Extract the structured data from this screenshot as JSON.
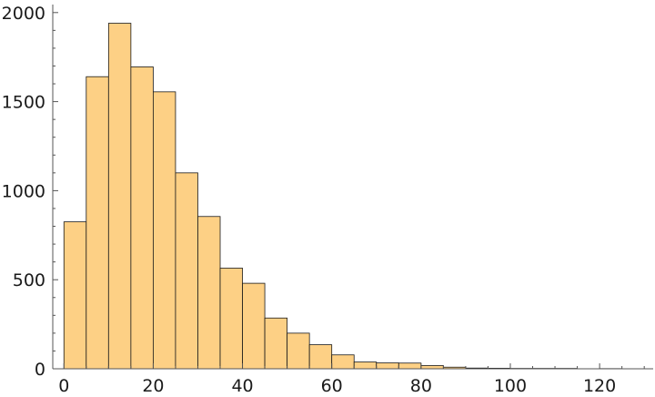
{
  "chart_data": {
    "type": "bar",
    "subtype": "histogram",
    "title": "",
    "xlabel": "",
    "ylabel": "",
    "bin_width": 5,
    "bins": [
      {
        "x0": 0,
        "x1": 5,
        "count": 825
      },
      {
        "x0": 5,
        "x1": 10,
        "count": 1640
      },
      {
        "x0": 10,
        "x1": 15,
        "count": 1940
      },
      {
        "x0": 15,
        "x1": 20,
        "count": 1695
      },
      {
        "x0": 20,
        "x1": 25,
        "count": 1555
      },
      {
        "x0": 25,
        "x1": 30,
        "count": 1100
      },
      {
        "x0": 30,
        "x1": 35,
        "count": 855
      },
      {
        "x0": 35,
        "x1": 40,
        "count": 565
      },
      {
        "x0": 40,
        "x1": 45,
        "count": 480
      },
      {
        "x0": 45,
        "x1": 50,
        "count": 285
      },
      {
        "x0": 50,
        "x1": 55,
        "count": 200
      },
      {
        "x0": 55,
        "x1": 60,
        "count": 135
      },
      {
        "x0": 60,
        "x1": 65,
        "count": 78
      },
      {
        "x0": 65,
        "x1": 70,
        "count": 38
      },
      {
        "x0": 70,
        "x1": 75,
        "count": 33
      },
      {
        "x0": 75,
        "x1": 80,
        "count": 32
      },
      {
        "x0": 80,
        "x1": 85,
        "count": 18
      },
      {
        "x0": 85,
        "x1": 90,
        "count": 9
      },
      {
        "x0": 90,
        "x1": 95,
        "count": 4
      },
      {
        "x0": 95,
        "x1": 100,
        "count": 3
      },
      {
        "x0": 100,
        "x1": 105,
        "count": 2
      },
      {
        "x0": 105,
        "x1": 110,
        "count": 2
      },
      {
        "x0": 110,
        "x1": 115,
        "count": 2
      },
      {
        "x0": 115,
        "x1": 120,
        "count": 0
      },
      {
        "x0": 120,
        "x1": 125,
        "count": 1
      }
    ],
    "xlim": [
      -2.5,
      132
    ],
    "ylim": [
      0,
      2045
    ],
    "x_ticks": [
      0,
      20,
      40,
      60,
      80,
      100,
      120
    ],
    "y_ticks": [
      0,
      500,
      1000,
      1500,
      2000
    ],
    "grid": false,
    "legend": "none",
    "colors": {
      "bar_fill": "#fdd085",
      "bar_stroke": "#1a1a1a",
      "axis": "#555555"
    }
  }
}
